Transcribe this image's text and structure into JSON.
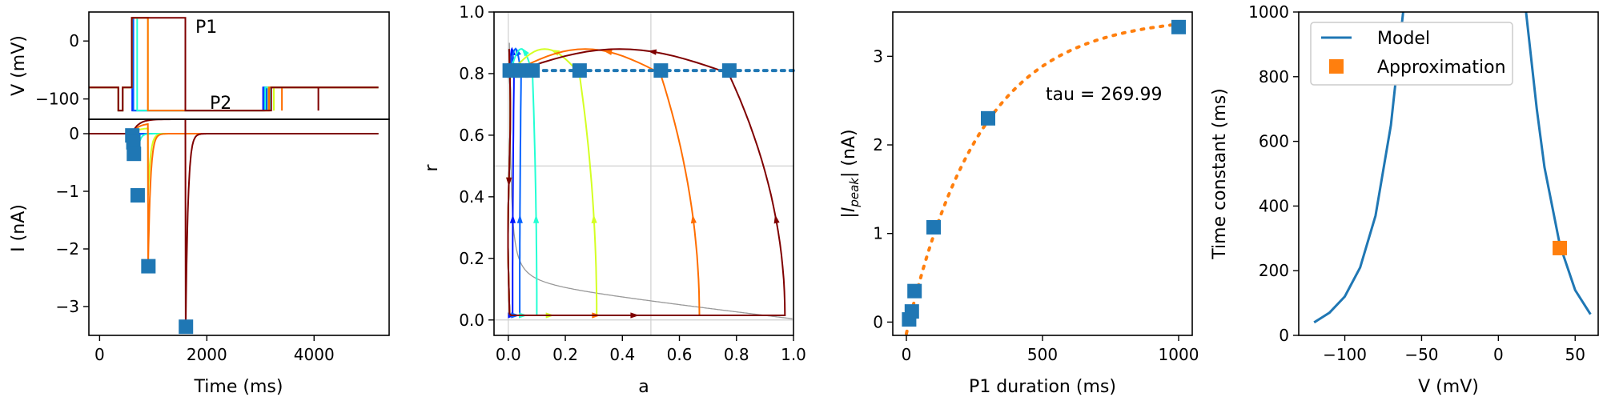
{
  "colors": {
    "marker_blue": "#1f77b4",
    "marker_orange": "#ff7f0e",
    "trace": [
      "#0015ff",
      "#0061ff",
      "#23ffd4",
      "#d4ff23",
      "#ff6e00",
      "#7f0000"
    ],
    "grid": "#cfcfcf",
    "nullcline": "#999999"
  },
  "chart_data": [
    {
      "type": "line",
      "panel": "voltage-protocol",
      "ylabel": "V (mV)",
      "xlim": [
        -200,
        5400
      ],
      "ylim": [
        -135,
        50
      ],
      "yticks": [
        0,
        -100
      ],
      "annotations": [
        {
          "text": "P1",
          "x": 1730,
          "y": 20
        },
        {
          "text": "P2",
          "x": 2020,
          "y": -103
        }
      ],
      "baseline_mv": -80,
      "prepulse": {
        "start": 350,
        "end": 430,
        "mv": -120
      },
      "p1_level_mv": 40,
      "hold_mv": -120,
      "p1_start": 600,
      "p2_level_mv": -80,
      "series": [
        {
          "p1_end": 610,
          "p2_start": 3050,
          "p2_end": 3110
        },
        {
          "p1_end": 630,
          "p2_start": 3070,
          "p2_end": 3140
        },
        {
          "p1_end": 700,
          "p2_start": 3090,
          "p2_end": 3170
        },
        {
          "p1_end": 900,
          "p2_start": 3150,
          "p2_end": 3250
        },
        {
          "p1_end": 900,
          "p2_start": 3160,
          "p2_end": 3400
        },
        {
          "p1_end": 1600,
          "p2_start": 3200,
          "p2_end": 4080
        }
      ]
    },
    {
      "type": "line",
      "panel": "current",
      "xlabel": "Time (ms)",
      "ylabel": "I (nA)",
      "xlim": [
        -200,
        5400
      ],
      "ylim": [
        -3.5,
        0.25
      ],
      "xticks": [
        0,
        2000,
        4000
      ],
      "yticks": [
        0,
        -1,
        -2,
        -3
      ],
      "peaks": [
        {
          "x": 610,
          "y": -0.03
        },
        {
          "x": 630,
          "y": -0.15
        },
        {
          "x": 640,
          "y": -0.35
        },
        {
          "x": 710,
          "y": -1.07
        },
        {
          "x": 910,
          "y": -2.3
        },
        {
          "x": 1610,
          "y": -3.35
        }
      ],
      "outward_amplitude": [
        0.005,
        0.01,
        0.03,
        0.1,
        0.18,
        0.25
      ]
    },
    {
      "type": "line",
      "panel": "phase-plane",
      "xlabel": "a",
      "ylabel": "r",
      "xlim": [
        -0.05,
        1.0
      ],
      "ylim": [
        -0.05,
        1.0
      ],
      "xticks": [
        0.0,
        0.2,
        0.4,
        0.6,
        0.8,
        1.0
      ],
      "yticks": [
        0.0,
        0.2,
        0.4,
        0.6,
        0.8,
        1.0
      ],
      "gridlines": {
        "x": [
          0.0,
          0.5
        ],
        "y": [
          0.0,
          0.5
        ]
      },
      "reference_level": 0.81,
      "markers": [
        {
          "a": 0.005,
          "r": 0.81
        },
        {
          "a": 0.02,
          "r": 0.81
        },
        {
          "a": 0.045,
          "r": 0.81
        },
        {
          "a": 0.085,
          "r": 0.81
        },
        {
          "a": 0.25,
          "r": 0.81
        },
        {
          "a": 0.535,
          "r": 0.81
        },
        {
          "a": 0.775,
          "r": 0.81
        }
      ],
      "trajectories": [
        {
          "a_rise": 0.015,
          "a_peak": 0.02
        },
        {
          "a_rise": 0.04,
          "a_peak": 0.045
        },
        {
          "a_rise": 0.1,
          "a_peak": 0.085
        },
        {
          "a_rise": 0.31,
          "a_peak": 0.25
        },
        {
          "a_rise": 0.67,
          "a_peak": 0.535
        },
        {
          "a_rise": 0.97,
          "a_peak": 0.775
        }
      ]
    },
    {
      "type": "scatter",
      "panel": "peak-vs-duration",
      "xlabel": "P1 duration (ms)",
      "ylabel": "|I_peak| (nA)",
      "xlim": [
        -50,
        1050
      ],
      "ylim": [
        -0.15,
        3.5
      ],
      "xticks": [
        0,
        500,
        1000
      ],
      "yticks": [
        0,
        1,
        2,
        3
      ],
      "annotation": "tau = 269.99",
      "points": [
        {
          "x": 10,
          "y": 0.03
        },
        {
          "x": 20,
          "y": 0.12
        },
        {
          "x": 30,
          "y": 0.35
        },
        {
          "x": 100,
          "y": 1.07
        },
        {
          "x": 300,
          "y": 2.3
        },
        {
          "x": 1000,
          "y": 3.33
        }
      ],
      "fit": {
        "amplitude": 3.45,
        "tau": 269.99,
        "offset": 10
      }
    },
    {
      "type": "line",
      "panel": "time-constant",
      "xlabel": "V (mV)",
      "ylabel": "Time constant (ms)",
      "xlim": [
        -130,
        65
      ],
      "ylim": [
        0,
        1000
      ],
      "xticks": [
        -100,
        -50,
        0,
        50
      ],
      "yticks": [
        0,
        200,
        400,
        600,
        800,
        1000
      ],
      "legend_position": "top-left",
      "legend": [
        "Model",
        "Approximation"
      ],
      "model_left": [
        {
          "x": -120,
          "y": 40
        },
        {
          "x": -110,
          "y": 70
        },
        {
          "x": -100,
          "y": 120
        },
        {
          "x": -90,
          "y": 210
        },
        {
          "x": -80,
          "y": 370
        },
        {
          "x": -70,
          "y": 650
        },
        {
          "x": -62,
          "y": 1000
        }
      ],
      "model_right": [
        {
          "x": 18,
          "y": 1000
        },
        {
          "x": 25,
          "y": 700
        },
        {
          "x": 30,
          "y": 520
        },
        {
          "x": 40,
          "y": 280
        },
        {
          "x": 50,
          "y": 140
        },
        {
          "x": 60,
          "y": 65
        }
      ],
      "approximation": {
        "x": 40,
        "y": 270
      }
    }
  ]
}
